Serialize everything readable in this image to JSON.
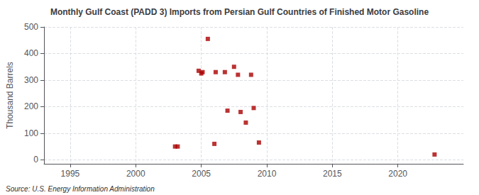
{
  "chart_data": {
    "type": "scatter",
    "title": "Monthly Gulf Coast (PADD 3) Imports from Persian Gulf Countries of Finished Motor Gasoline",
    "ylabel": "Thousand Barrels",
    "annotations": [
      "Source: U.S. Energy Information Administration"
    ],
    "x": [
      2003.0,
      2003.2,
      2004.8,
      2005.0,
      2005.1,
      2005.5,
      2006.0,
      2006.1,
      2006.8,
      2007.0,
      2007.5,
      2007.8,
      2008.0,
      2008.4,
      2008.8,
      2009.0,
      2009.4,
      2022.8
    ],
    "values": [
      50,
      50,
      335,
      325,
      330,
      455,
      60,
      330,
      330,
      185,
      350,
      320,
      180,
      140,
      320,
      195,
      65,
      20
    ],
    "color": "#aa0000",
    "marker": "square",
    "xlim": [
      1993,
      2025
    ],
    "xticks": [
      1995,
      2000,
      2005,
      2010,
      2015,
      2020
    ],
    "ylim": [
      -15,
      500
    ],
    "yticks": [
      0,
      100,
      200,
      300,
      400,
      500
    ],
    "grid": true
  }
}
